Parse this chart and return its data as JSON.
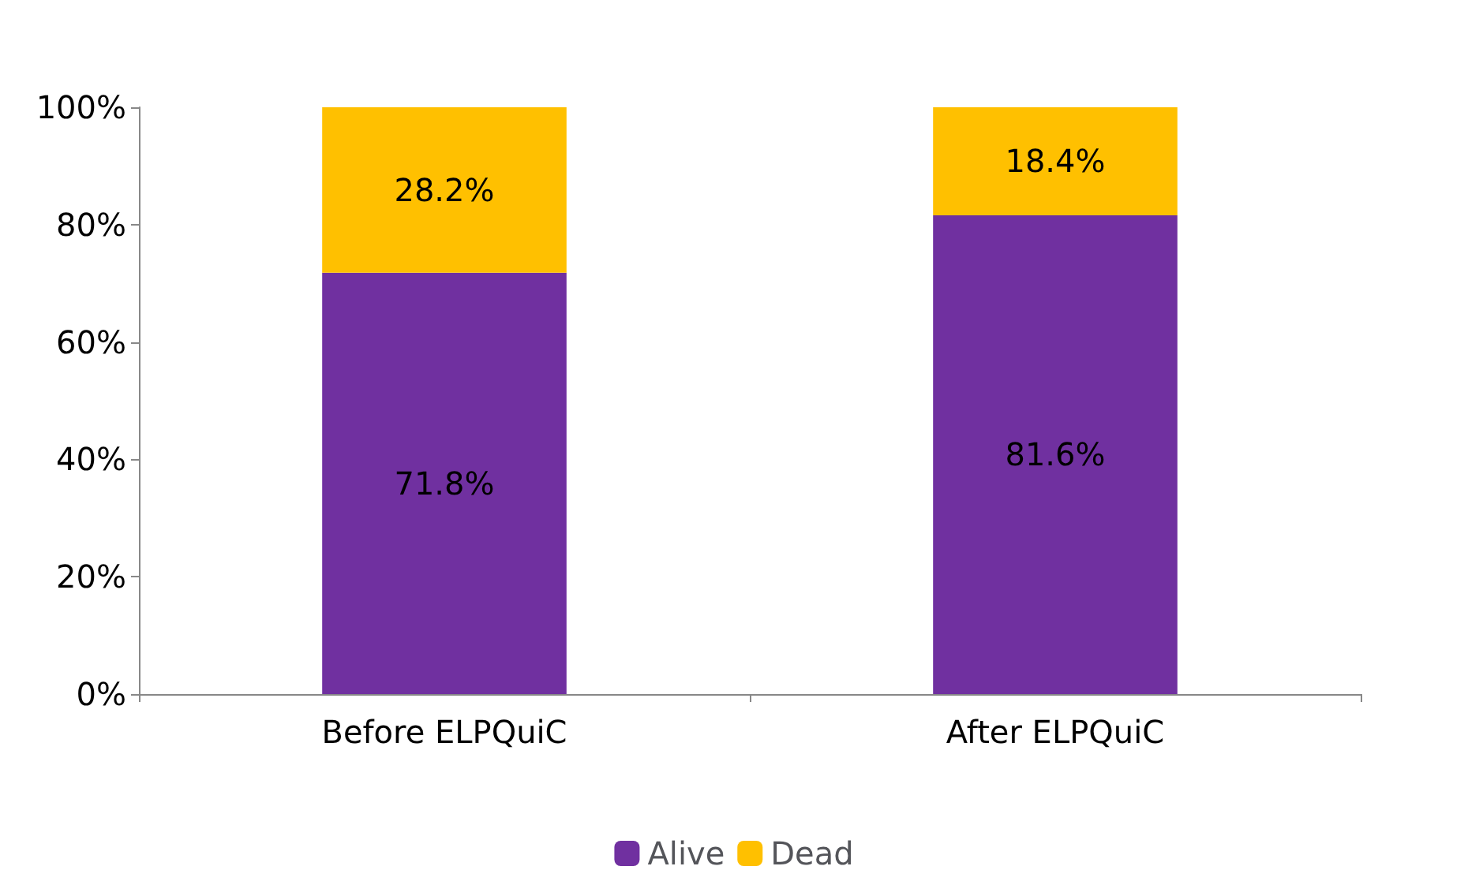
{
  "chart_data": {
    "type": "bar",
    "stacked": true,
    "categories": [
      "Before ELPQuiC",
      "After ELPQuiC"
    ],
    "series": [
      {
        "name": "Alive",
        "color": "#7030a0",
        "values": [
          71.8,
          81.6
        ],
        "value_labels": [
          "71.8%",
          "81.6%"
        ]
      },
      {
        "name": "Dead",
        "color": "#ffc000",
        "values": [
          28.2,
          18.4
        ],
        "value_labels": [
          "28.2%",
          "18.4%"
        ]
      }
    ],
    "ylim": [
      0,
      100
    ],
    "yticks": [
      {
        "value": 0,
        "label": "0%"
      },
      {
        "value": 20,
        "label": "20%"
      },
      {
        "value": 40,
        "label": "40%"
      },
      {
        "value": 60,
        "label": "60%"
      },
      {
        "value": 80,
        "label": "80%"
      },
      {
        "value": 100,
        "label": "100%"
      }
    ],
    "grid": false,
    "legend": "bottom"
  }
}
